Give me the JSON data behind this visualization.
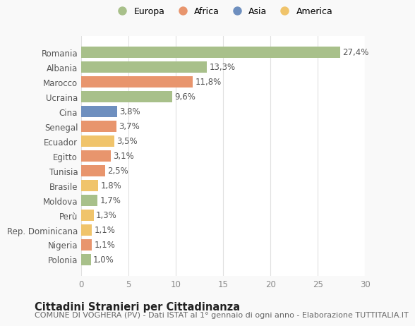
{
  "categories": [
    "Polonia",
    "Nigeria",
    "Rep. Dominicana",
    "Perù",
    "Moldova",
    "Brasile",
    "Tunisia",
    "Egitto",
    "Ecuador",
    "Senegal",
    "Cina",
    "Ucraina",
    "Marocco",
    "Albania",
    "Romania"
  ],
  "values": [
    1.0,
    1.1,
    1.1,
    1.3,
    1.7,
    1.8,
    2.5,
    3.1,
    3.5,
    3.7,
    3.8,
    9.6,
    11.8,
    13.3,
    27.4
  ],
  "labels": [
    "1,0%",
    "1,1%",
    "1,1%",
    "1,3%",
    "1,7%",
    "1,8%",
    "2,5%",
    "3,1%",
    "3,5%",
    "3,7%",
    "3,8%",
    "9,6%",
    "11,8%",
    "13,3%",
    "27,4%"
  ],
  "colors": [
    "#a8c08a",
    "#e8956d",
    "#f0c46b",
    "#f0c46b",
    "#a8c08a",
    "#f0c46b",
    "#e8956d",
    "#e8956d",
    "#f0c46b",
    "#e8956d",
    "#6e8fbf",
    "#a8c08a",
    "#e8956d",
    "#a8c08a",
    "#a8c08a"
  ],
  "legend_labels": [
    "Europa",
    "Africa",
    "Asia",
    "America"
  ],
  "legend_colors": [
    "#a8c08a",
    "#e8956d",
    "#6e8fbf",
    "#f0c46b"
  ],
  "title": "Cittadini Stranieri per Cittadinanza",
  "subtitle": "COMUNE DI VOGHERA (PV) - Dati ISTAT al 1° gennaio di ogni anno - Elaborazione TUTTITALIA.IT",
  "xlim": [
    0,
    30
  ],
  "xticks": [
    0,
    5,
    10,
    15,
    20,
    25,
    30
  ],
  "bg_color": "#f9f9f9",
  "plot_bg_color": "#ffffff",
  "grid_color": "#e0e0e0",
  "bar_height": 0.75,
  "label_fontsize": 8.5,
  "tick_fontsize": 8.5,
  "title_fontsize": 10.5,
  "subtitle_fontsize": 8.0
}
